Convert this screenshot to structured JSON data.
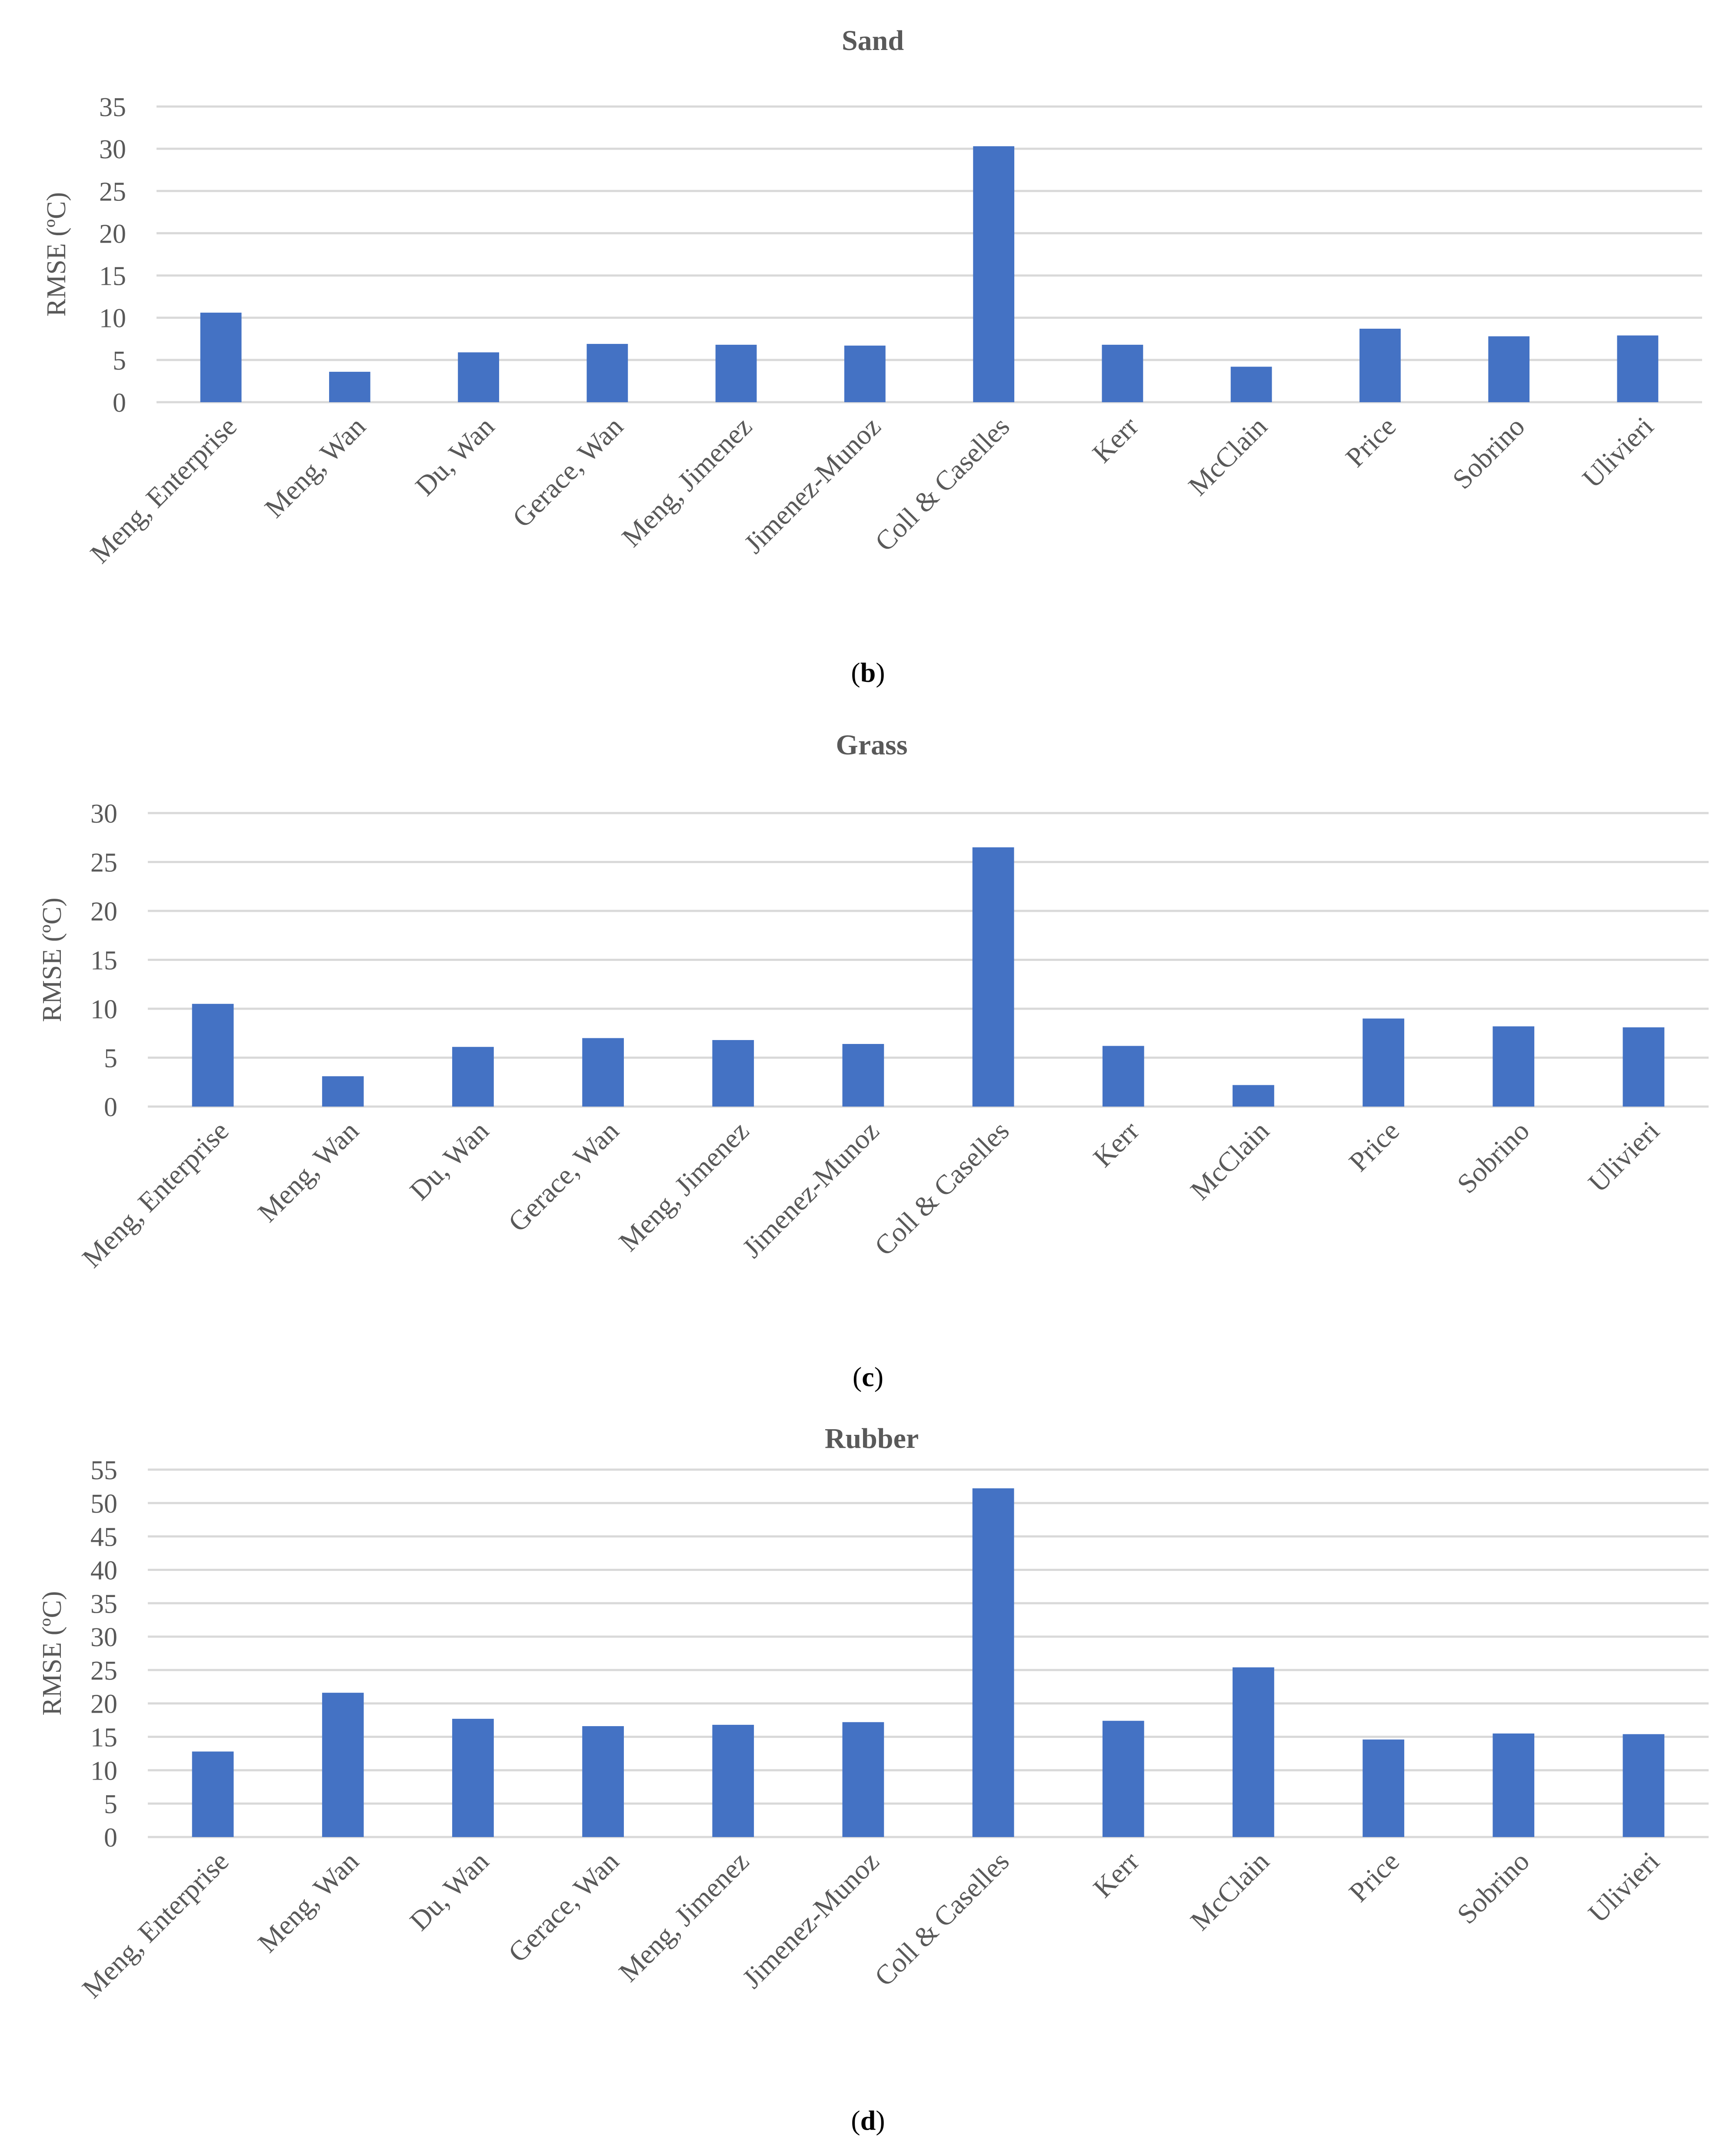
{
  "chart_data": [
    {
      "type": "bar",
      "title": "Sand",
      "ylabel": "RMSE (ºC)",
      "xlabel": "",
      "ylim": [
        0,
        35
      ],
      "yticks": [
        0,
        5,
        10,
        15,
        20,
        25,
        30,
        35
      ],
      "categories": [
        "Meng, Enterprise",
        "Meng, Wan",
        "Du, Wan",
        "Gerace, Wan",
        "Meng, Jimenez",
        "Jimenez-Munoz",
        "Coll & Caselles",
        "Kerr",
        "McClain",
        "Price",
        "Sobrino",
        "Ulivieri"
      ],
      "values": [
        10.6,
        3.6,
        5.9,
        6.9,
        6.8,
        6.7,
        30.3,
        6.8,
        4.2,
        8.7,
        7.8,
        7.9
      ],
      "color": "#4472C4",
      "caption_letter": "b"
    },
    {
      "type": "bar",
      "title": "Grass",
      "ylabel": "RMSE (ºC)",
      "xlabel": "",
      "ylim": [
        0,
        30
      ],
      "yticks": [
        0,
        5,
        10,
        15,
        20,
        25,
        30
      ],
      "categories": [
        "Meng, Enterprise",
        "Meng, Wan",
        "Du, Wan",
        "Gerace, Wan",
        "Meng, Jimenez",
        "Jimenez-Munoz",
        "Coll & Caselles",
        "Kerr",
        "McClain",
        "Price",
        "Sobrino",
        "Ulivieri"
      ],
      "values": [
        10.5,
        3.1,
        6.1,
        7.0,
        6.8,
        6.4,
        26.5,
        6.2,
        2.2,
        9.0,
        8.2,
        8.1
      ],
      "color": "#4472C4",
      "caption_letter": "c"
    },
    {
      "type": "bar",
      "title": "Rubber",
      "ylabel": "RMSE (ºC)",
      "xlabel": "",
      "ylim": [
        0,
        55
      ],
      "yticks": [
        0,
        5,
        10,
        15,
        20,
        25,
        30,
        35,
        40,
        45,
        50,
        55
      ],
      "categories": [
        "Meng, Enterprise",
        "Meng, Wan",
        "Du, Wan",
        "Gerace, Wan",
        "Meng, Jimenez",
        "Jimenez-Munoz",
        "Coll & Caselles",
        "Kerr",
        "McClain",
        "Price",
        "Sobrino",
        "Ulivieri"
      ],
      "values": [
        12.8,
        21.6,
        17.7,
        16.6,
        16.8,
        17.2,
        52.2,
        17.4,
        25.4,
        14.6,
        15.5,
        15.4
      ],
      "color": "#4472C4",
      "caption_letter": "d"
    }
  ]
}
